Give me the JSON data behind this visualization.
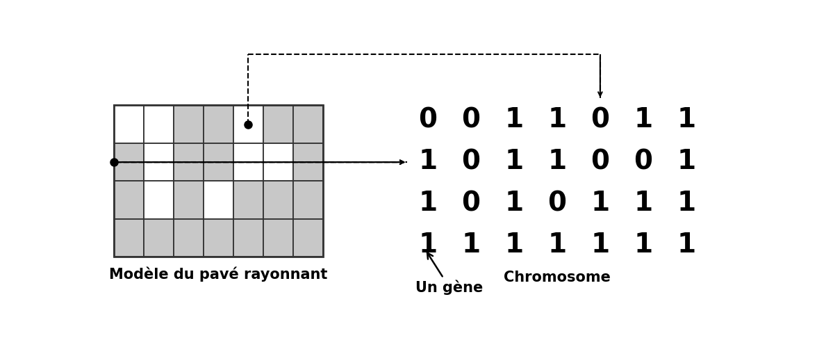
{
  "grid_rows": 4,
  "grid_cols": 7,
  "grid_colors": [
    [
      0,
      0,
      1,
      1,
      0,
      1,
      1
    ],
    [
      1,
      0,
      1,
      1,
      0,
      0,
      1
    ],
    [
      1,
      0,
      1,
      0,
      1,
      1,
      1
    ],
    [
      1,
      1,
      1,
      1,
      1,
      1,
      1
    ]
  ],
  "binary_values": [
    [
      "0",
      "0",
      "1",
      "1",
      "0",
      "1",
      "1"
    ],
    [
      "1",
      "0",
      "1",
      "1",
      "0",
      "0",
      "1"
    ],
    [
      "1",
      "0",
      "1",
      "0",
      "1",
      "1",
      "1"
    ],
    [
      "1",
      "1",
      "1",
      "1",
      "1",
      "1",
      "1"
    ]
  ],
  "gray_color": "#c8c8c8",
  "white_color": "#ffffff",
  "grid_line_color": "#333333",
  "label_left": "Modèle du pavé rayonnant",
  "label_right": "Chromosome",
  "label_gene": "Un gène",
  "background_color": "#ffffff",
  "fontsize_binary": 28,
  "fontsize_labels": 15
}
